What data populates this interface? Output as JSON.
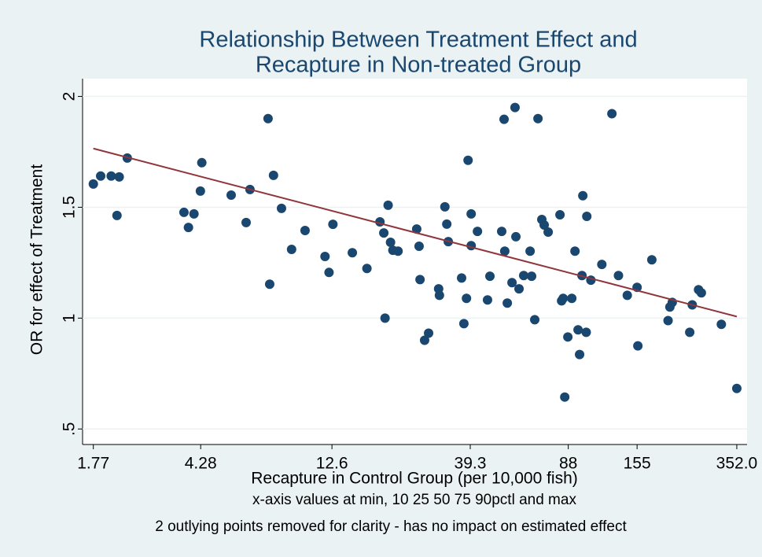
{
  "chart_data": {
    "type": "scatter",
    "title": [
      "Relationship Between Treatment Effect and",
      "Recapture in Non-treated Group"
    ],
    "xlabel": "Recapture in Control Group (per 10,000 fish)",
    "ylabel": "OR for effect of Treatment",
    "notes": [
      "x-axis values at min, 10 25 50 75 90pctl and max",
      "2 outlying points removed for clarity - has no impact on estimated effect"
    ],
    "xscale": "log",
    "xlim": [
      1.62,
      383
    ],
    "xticks": [
      1.77,
      4.28,
      12.6,
      39.3,
      88,
      155,
      {
        "value": 352,
        "label": "352.0"
      }
    ],
    "ylim": [
      0.43,
      2.08
    ],
    "yticks": [
      2,
      1.5,
      1,
      {
        "value": 0.5,
        "label": ".5"
      }
    ],
    "grid": true,
    "series": [
      {
        "type": "scatter",
        "color": "#1a476f",
        "x": [
          1.77,
          1.88,
          2.05,
          2.19,
          2.15,
          2.34,
          3.73,
          3.87,
          4.05,
          4.27,
          4.32,
          5.5,
          6.22,
          6.42,
          7.45,
          7.55,
          7.79,
          8.32,
          9.04,
          10.1,
          11.9,
          12.3,
          12.7,
          14.9,
          16.8,
          18.7,
          19.3,
          19.5,
          20.0,
          20.4,
          20.8,
          21.7,
          25.3,
          25.8,
          26.0,
          27.0,
          27.9,
          30.3,
          30.5,
          31.9,
          32.4,
          32.8,
          36.6,
          37.3,
          38.1,
          38.6,
          39.6,
          39.6,
          41.7,
          45.3,
          46.2,
          50.9,
          51.9,
          52.2,
          53.3,
          55.4,
          56.8,
          57.2,
          58.7,
          61.0,
          64.3,
          65.1,
          66.8,
          68.6,
          70.8,
          72.2,
          74.6,
          82.2,
          83.3,
          84.4,
          85.5,
          87.7,
          90.6,
          93.0,
          95.4,
          96.6,
          98.5,
          99.2,
          102,
          102.5,
          106,
          116,
          126,
          133,
          143,
          155,
          156,
          175,
          200,
          203,
          207,
          239,
          244,
          257,
          263,
          310,
          352
        ],
        "values": [
          1.605,
          1.641,
          1.641,
          1.637,
          1.463,
          1.722,
          1.477,
          1.409,
          1.47,
          1.573,
          1.701,
          1.555,
          1.431,
          1.58,
          1.9,
          1.153,
          1.644,
          1.495,
          1.31,
          1.395,
          1.278,
          1.206,
          1.423,
          1.295,
          1.224,
          1.434,
          1.384,
          1.0,
          1.509,
          1.342,
          1.306,
          1.302,
          1.402,
          1.324,
          1.174,
          0.9,
          0.932,
          1.132,
          1.103,
          1.502,
          1.424,
          1.345,
          1.181,
          0.975,
          1.089,
          1.712,
          1.47,
          1.327,
          1.391,
          1.082,
          1.189,
          1.391,
          1.897,
          1.302,
          1.068,
          1.16,
          1.95,
          1.367,
          1.132,
          1.192,
          1.302,
          1.189,
          0.993,
          1.9,
          1.445,
          1.42,
          1.388,
          1.466,
          1.078,
          1.089,
          0.644,
          0.915,
          1.089,
          1.302,
          0.947,
          0.836,
          1.192,
          1.552,
          0.936,
          1.459,
          1.171,
          1.242,
          1.922,
          1.192,
          1.103,
          1.139,
          0.875,
          1.263,
          0.989,
          1.05,
          1.071,
          0.936,
          1.06,
          1.128,
          1.114,
          0.972,
          0.683
        ]
      },
      {
        "type": "line",
        "color": "#90353b",
        "x": [
          1.77,
          352
        ],
        "values": [
          1.765,
          1.007
        ]
      }
    ]
  }
}
